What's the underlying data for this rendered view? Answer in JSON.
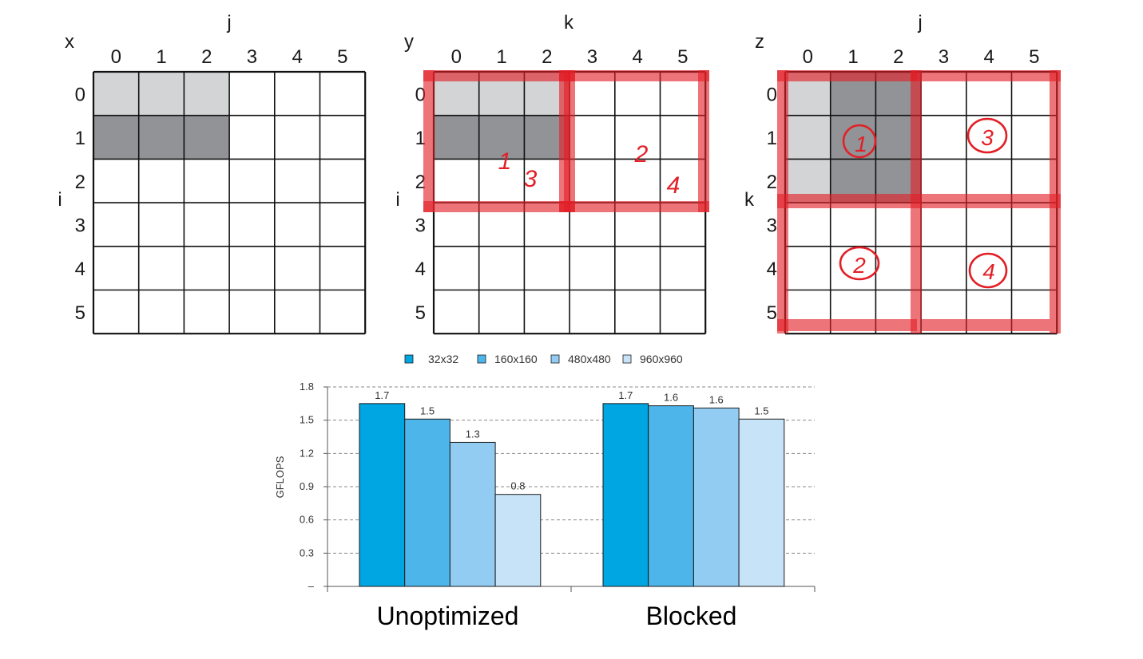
{
  "diagrams": [
    {
      "id": "x",
      "corner_label": "x",
      "col_label": "j",
      "row_label": "i",
      "col_ticks": [
        "0",
        "1",
        "2",
        "3",
        "4",
        "5"
      ],
      "row_ticks": [
        "0",
        "1",
        "2",
        "3",
        "4",
        "5"
      ],
      "light_cells": [
        [
          0,
          0
        ],
        [
          0,
          1
        ],
        [
          0,
          2
        ]
      ],
      "dark_cells": [
        [
          1,
          0
        ],
        [
          1,
          1
        ],
        [
          1,
          2
        ]
      ]
    },
    {
      "id": "y",
      "corner_label": "y",
      "col_label": "k",
      "row_label": "i",
      "col_ticks": [
        "0",
        "1",
        "2",
        "3",
        "4",
        "5"
      ],
      "row_ticks": [
        "0",
        "1",
        "2",
        "3",
        "4",
        "5"
      ],
      "light_cells": [
        [
          0,
          0
        ],
        [
          0,
          1
        ],
        [
          0,
          2
        ]
      ],
      "dark_cells": [
        [
          1,
          0
        ],
        [
          1,
          1
        ],
        [
          1,
          2
        ]
      ],
      "annotations": [
        "1",
        "3",
        "2",
        "4"
      ]
    },
    {
      "id": "z",
      "corner_label": "z",
      "col_label": "j",
      "row_label": "k",
      "col_ticks": [
        "0",
        "1",
        "2",
        "3",
        "4",
        "5"
      ],
      "row_ticks": [
        "0",
        "1",
        "2",
        "3",
        "4",
        "5"
      ],
      "light_cells": [
        [
          0,
          0
        ],
        [
          1,
          0
        ],
        [
          2,
          0
        ]
      ],
      "dark_cells": [
        [
          0,
          1
        ],
        [
          0,
          2
        ],
        [
          1,
          1
        ],
        [
          1,
          2
        ],
        [
          2,
          1
        ],
        [
          2,
          2
        ]
      ],
      "annotations": [
        "1",
        "3",
        "2",
        "4"
      ]
    }
  ],
  "colors": {
    "light_cell": "#d3d4d6",
    "dark_cell": "#929396",
    "annotation": "#e21f26",
    "series": [
      "#00a6e2",
      "#4db5ea",
      "#93ccf2",
      "#c7e3f7"
    ]
  },
  "chart_data": {
    "type": "bar",
    "categories": [
      "Unoptimized",
      "Blocked"
    ],
    "series": [
      {
        "name": "32x32",
        "values": [
          1.65,
          1.65
        ],
        "labels": [
          "1.7",
          "1.7"
        ]
      },
      {
        "name": "160x160",
        "values": [
          1.51,
          1.63
        ],
        "labels": [
          "1.5",
          "1.6"
        ]
      },
      {
        "name": "480x480",
        "values": [
          1.3,
          1.61
        ],
        "labels": [
          "1.3",
          "1.6"
        ]
      },
      {
        "name": "960x960",
        "values": [
          0.83,
          1.51
        ],
        "labels": [
          "0.8",
          "1.5"
        ]
      }
    ],
    "xlabel": "",
    "ylabel": "GFLOPS",
    "ylim": [
      0,
      1.8
    ],
    "yticks": [
      "–",
      "0.3",
      "0.6",
      "0.9",
      "1.2",
      "1.5",
      "1.8"
    ],
    "grid": true,
    "legend_position": "top"
  }
}
